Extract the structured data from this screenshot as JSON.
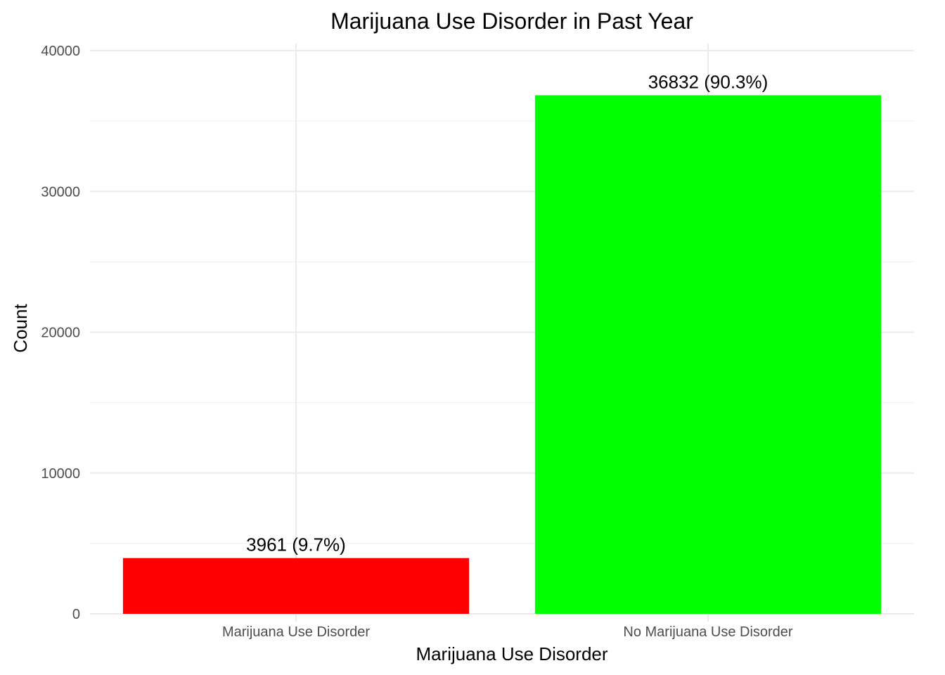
{
  "chart_data": {
    "type": "bar",
    "title": "Marijuana Use Disorder in Past Year",
    "xlabel": "Marijuana Use Disorder",
    "ylabel": "Count",
    "categories": [
      "Marijuana Use Disorder",
      "No Marijuana Use Disorder"
    ],
    "values": [
      3961,
      36832
    ],
    "data_labels": [
      "3961 (9.7%)",
      "36832 (90.3%)"
    ],
    "colors": [
      "#ff0000",
      "#00ff00"
    ],
    "ylim": [
      0,
      40000
    ],
    "yticks": [
      0,
      10000,
      20000,
      30000,
      40000
    ],
    "ytick_labels": [
      "0",
      "10000",
      "20000",
      "30000",
      "40000"
    ],
    "grid": true,
    "legend": "none"
  }
}
